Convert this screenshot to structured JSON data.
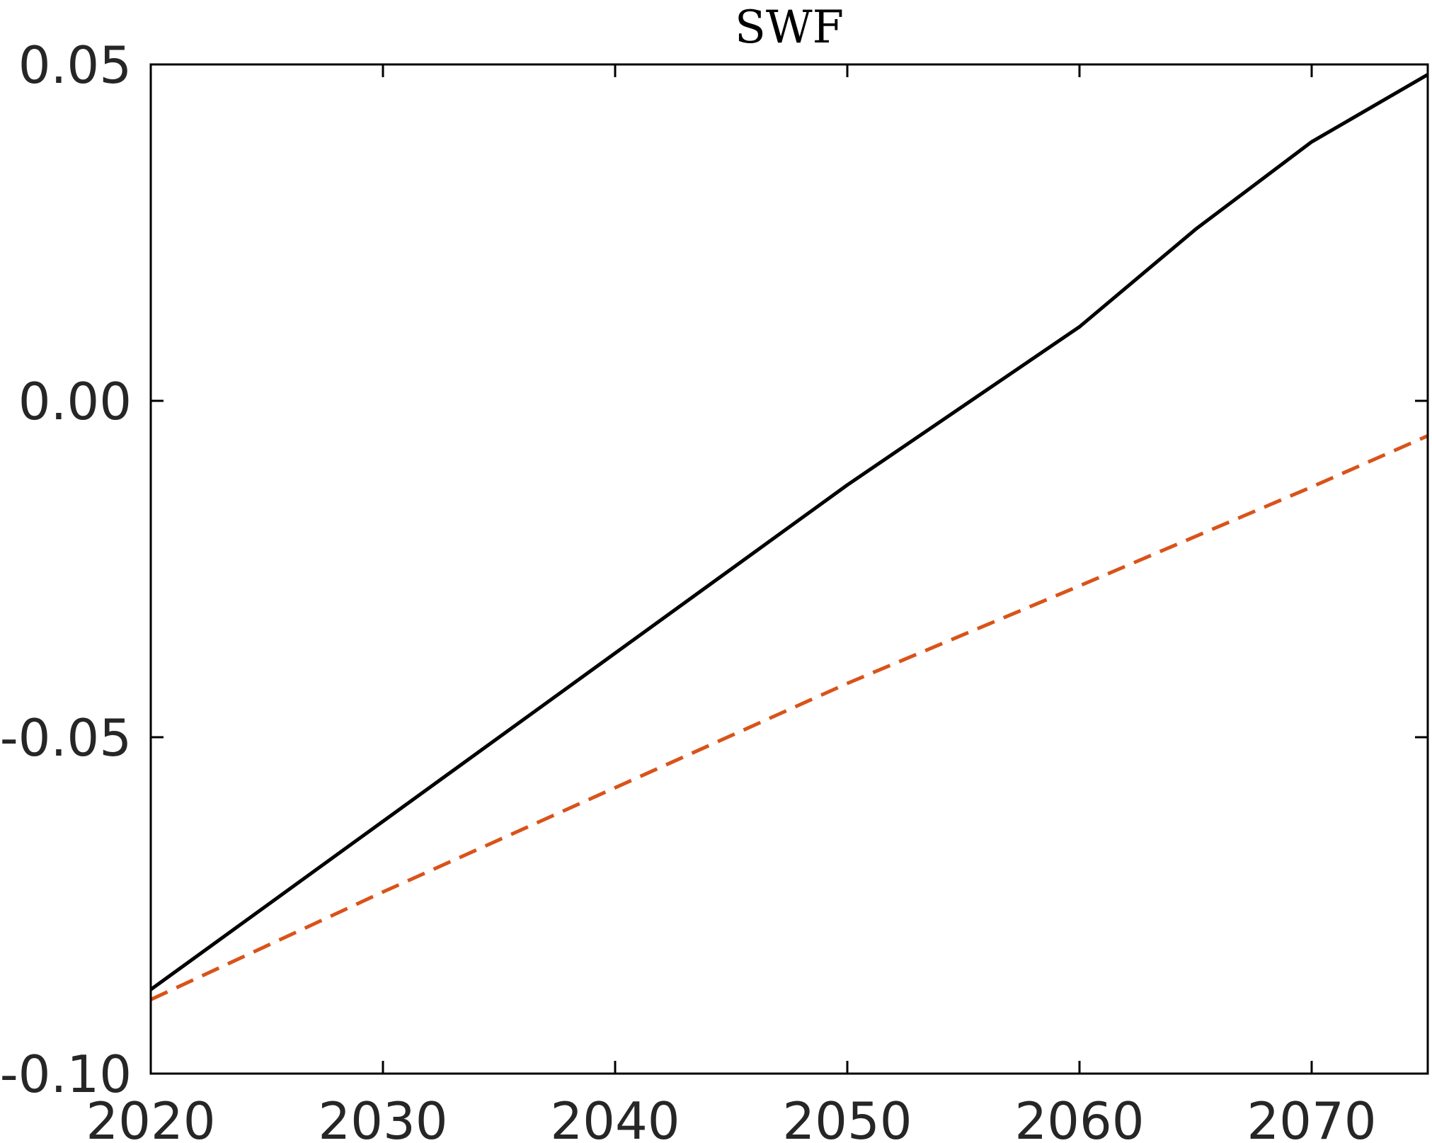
{
  "chart_data": {
    "type": "line",
    "title": "SWF",
    "xlabel": "",
    "ylabel": "",
    "xlim": [
      2020,
      2075
    ],
    "ylim": [
      -0.1,
      0.05
    ],
    "xticks": [
      2020,
      2030,
      2040,
      2050,
      2060,
      2070
    ],
    "xtick_labels": [
      "2020",
      "2030",
      "2040",
      "2050",
      "2060",
      "2070"
    ],
    "yticks": [
      -0.1,
      -0.05,
      0,
      0.05
    ],
    "ytick_labels": [
      "-0.10",
      "-0.05",
      "0.00",
      "0.05"
    ],
    "grid": false,
    "legend": "none",
    "series": [
      {
        "color": "#000000",
        "style": "solid",
        "x": [
          2020,
          2030,
          2040,
          2050,
          2060,
          2065,
          2070,
          2075
        ],
        "y": [
          -0.0875,
          -0.0625,
          -0.0375,
          -0.0125,
          0.011,
          0.0255,
          0.0385,
          0.0485
        ]
      },
      {
        "color": "#d95319",
        "style": "dashed",
        "x": [
          2020,
          2030,
          2040,
          2050,
          2060,
          2070,
          2075
        ],
        "y": [
          -0.089,
          -0.073,
          -0.0575,
          -0.042,
          -0.0275,
          -0.0128,
          -0.0052
        ]
      }
    ]
  }
}
